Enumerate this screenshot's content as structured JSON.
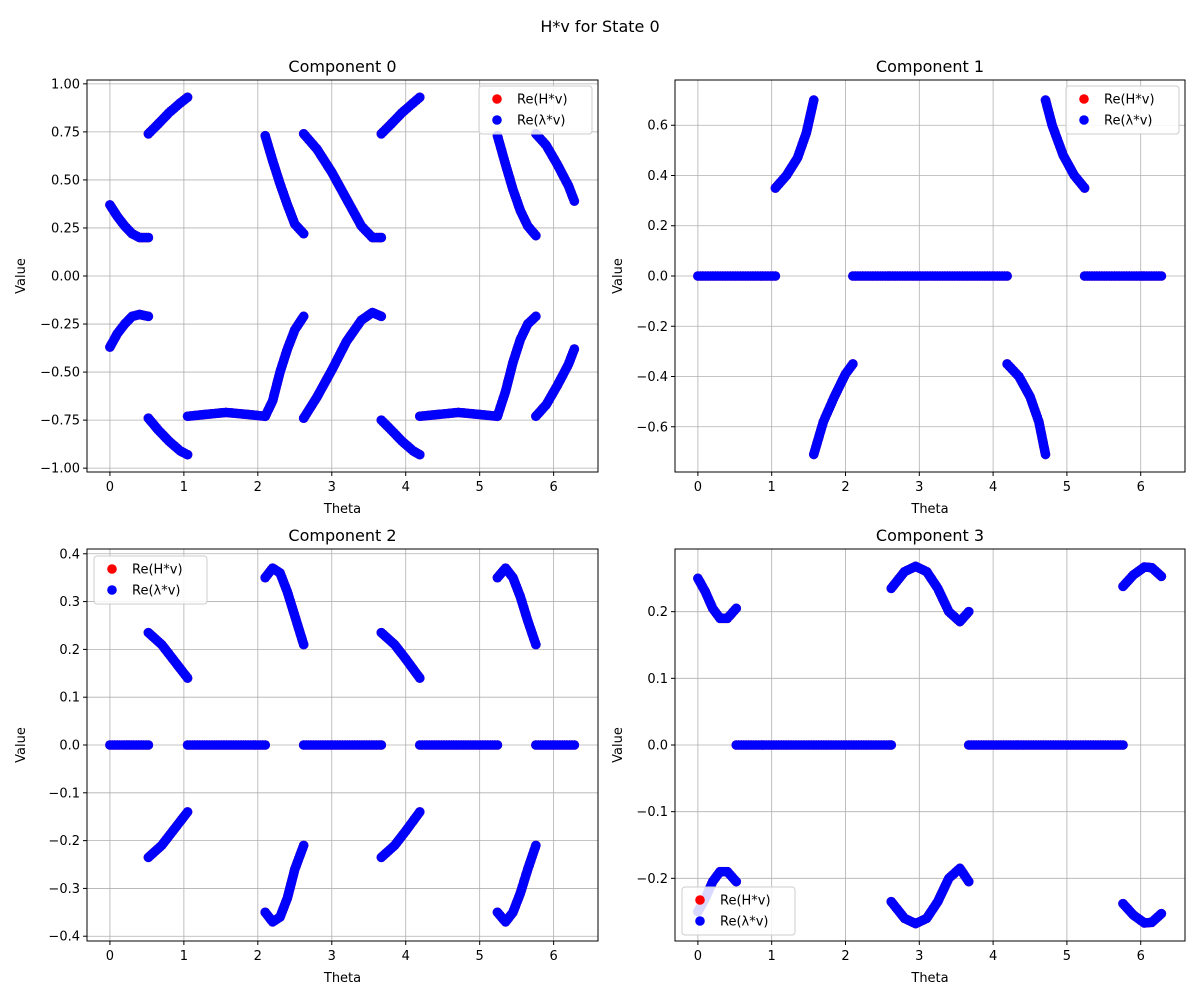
{
  "figure": {
    "suptitle": "H*v for State 0"
  },
  "colors": {
    "h_series": "#ff0000",
    "lambda_series": "#0000ff",
    "grid": "#b0b0b0",
    "legend_border": "#cccccc"
  },
  "chart_data": [
    {
      "type": "scatter",
      "title": "Component 0",
      "xlabel": "Theta",
      "ylabel": "Value",
      "xlim": [
        -0.31,
        6.6
      ],
      "ylim": [
        -1.02,
        1.02
      ],
      "xticks": [
        0,
        1,
        2,
        3,
        4,
        5,
        6
      ],
      "yticks": [
        -1.0,
        -0.75,
        -0.5,
        -0.25,
        0.0,
        0.25,
        0.5,
        0.75,
        1.0
      ],
      "ytick_labels": [
        "−1.00",
        "−0.75",
        "−0.50",
        "−0.25",
        "0.00",
        "0.25",
        "0.50",
        "0.75",
        "1.00"
      ],
      "grid": true,
      "legend_position": "upper right",
      "legend": [
        "Re(H*v)",
        "Re(λ*v)"
      ],
      "segments": [
        {
          "points": [
            [
              0.0,
              0.37
            ],
            [
              0.1,
              0.31
            ],
            [
              0.2,
              0.26
            ],
            [
              0.3,
              0.22
            ],
            [
              0.4,
              0.2
            ],
            [
              0.52,
              0.2
            ]
          ]
        },
        {
          "points": [
            [
              0.0,
              -0.37
            ],
            [
              0.1,
              -0.3
            ],
            [
              0.2,
              -0.25
            ],
            [
              0.3,
              -0.21
            ],
            [
              0.4,
              -0.2
            ],
            [
              0.52,
              -0.21
            ]
          ]
        },
        {
          "points": [
            [
              0.52,
              0.74
            ],
            [
              0.65,
              0.79
            ],
            [
              0.8,
              0.85
            ],
            [
              0.95,
              0.9
            ],
            [
              1.05,
              0.93
            ]
          ]
        },
        {
          "points": [
            [
              0.52,
              -0.74
            ],
            [
              0.65,
              -0.8
            ],
            [
              0.8,
              -0.86
            ],
            [
              0.95,
              -0.91
            ],
            [
              1.05,
              -0.93
            ]
          ]
        },
        {
          "points": [
            [
              1.05,
              -0.73
            ],
            [
              1.3,
              -0.72
            ],
            [
              1.57,
              -0.71
            ],
            [
              1.85,
              -0.72
            ],
            [
              2.1,
              -0.73
            ]
          ]
        },
        {
          "points": [
            [
              2.1,
              -0.73
            ],
            [
              2.2,
              -0.65
            ],
            [
              2.3,
              -0.5
            ],
            [
              2.4,
              -0.38
            ],
            [
              2.5,
              -0.28
            ],
            [
              2.62,
              -0.21
            ]
          ]
        },
        {
          "points": [
            [
              2.1,
              0.73
            ],
            [
              2.2,
              0.6
            ],
            [
              2.3,
              0.48
            ],
            [
              2.4,
              0.37
            ],
            [
              2.5,
              0.27
            ],
            [
              2.62,
              0.22
            ]
          ]
        },
        {
          "points": [
            [
              2.62,
              0.74
            ],
            [
              2.8,
              0.66
            ],
            [
              3.0,
              0.54
            ],
            [
              3.2,
              0.4
            ],
            [
              3.4,
              0.26
            ],
            [
              3.55,
              0.2
            ],
            [
              3.67,
              0.2
            ]
          ]
        },
        {
          "points": [
            [
              2.62,
              -0.74
            ],
            [
              2.8,
              -0.63
            ],
            [
              3.0,
              -0.49
            ],
            [
              3.2,
              -0.34
            ],
            [
              3.4,
              -0.23
            ],
            [
              3.55,
              -0.19
            ],
            [
              3.67,
              -0.21
            ]
          ]
        },
        {
          "points": [
            [
              3.67,
              0.74
            ],
            [
              3.8,
              0.79
            ],
            [
              3.95,
              0.85
            ],
            [
              4.1,
              0.9
            ],
            [
              4.19,
              0.93
            ]
          ]
        },
        {
          "points": [
            [
              3.67,
              -0.75
            ],
            [
              3.8,
              -0.8
            ],
            [
              3.95,
              -0.86
            ],
            [
              4.1,
              -0.91
            ],
            [
              4.19,
              -0.93
            ]
          ]
        },
        {
          "points": [
            [
              4.19,
              -0.73
            ],
            [
              4.45,
              -0.72
            ],
            [
              4.71,
              -0.71
            ],
            [
              4.98,
              -0.72
            ],
            [
              5.24,
              -0.73
            ]
          ]
        },
        {
          "points": [
            [
              5.24,
              -0.73
            ],
            [
              5.35,
              -0.6
            ],
            [
              5.45,
              -0.45
            ],
            [
              5.55,
              -0.33
            ],
            [
              5.65,
              -0.25
            ],
            [
              5.76,
              -0.21
            ]
          ]
        },
        {
          "points": [
            [
              5.24,
              0.73
            ],
            [
              5.35,
              0.58
            ],
            [
              5.45,
              0.45
            ],
            [
              5.55,
              0.34
            ],
            [
              5.65,
              0.26
            ],
            [
              5.76,
              0.21
            ]
          ]
        },
        {
          "points": [
            [
              5.76,
              0.74
            ],
            [
              5.9,
              0.68
            ],
            [
              6.05,
              0.58
            ],
            [
              6.2,
              0.47
            ],
            [
              6.28,
              0.39
            ]
          ]
        },
        {
          "points": [
            [
              5.76,
              -0.73
            ],
            [
              5.9,
              -0.67
            ],
            [
              6.05,
              -0.57
            ],
            [
              6.2,
              -0.46
            ],
            [
              6.28,
              -0.38
            ]
          ]
        }
      ]
    },
    {
      "type": "scatter",
      "title": "Component 1",
      "xlabel": "Theta",
      "ylabel": "Value",
      "xlim": [
        -0.31,
        6.6
      ],
      "ylim": [
        -0.78,
        0.78
      ],
      "xticks": [
        0,
        1,
        2,
        3,
        4,
        5,
        6
      ],
      "yticks": [
        -0.6,
        -0.4,
        -0.2,
        0.0,
        0.2,
        0.4,
        0.6
      ],
      "ytick_labels": [
        "−0.6",
        "−0.4",
        "−0.2",
        "0.0",
        "0.2",
        "0.4",
        "0.6"
      ],
      "grid": true,
      "legend_position": "upper right",
      "legend": [
        "Re(H*v)",
        "Re(λ*v)"
      ],
      "segments": [
        {
          "points": [
            [
              0.0,
              0.0
            ],
            [
              1.05,
              0.0
            ]
          ]
        },
        {
          "points": [
            [
              1.05,
              0.35
            ],
            [
              1.2,
              0.4
            ],
            [
              1.35,
              0.47
            ],
            [
              1.47,
              0.57
            ],
            [
              1.57,
              0.7
            ]
          ]
        },
        {
          "points": [
            [
              1.57,
              -0.71
            ],
            [
              1.7,
              -0.58
            ],
            [
              1.85,
              -0.48
            ],
            [
              2.0,
              -0.39
            ],
            [
              2.1,
              -0.35
            ]
          ]
        },
        {
          "points": [
            [
              2.1,
              0.0
            ],
            [
              4.19,
              0.0
            ]
          ]
        },
        {
          "points": [
            [
              4.19,
              -0.35
            ],
            [
              4.35,
              -0.4
            ],
            [
              4.5,
              -0.48
            ],
            [
              4.62,
              -0.58
            ],
            [
              4.71,
              -0.71
            ]
          ]
        },
        {
          "points": [
            [
              4.71,
              0.7
            ],
            [
              4.8,
              0.6
            ],
            [
              4.95,
              0.48
            ],
            [
              5.1,
              0.4
            ],
            [
              5.24,
              0.35
            ]
          ]
        },
        {
          "points": [
            [
              5.24,
              0.0
            ],
            [
              6.28,
              0.0
            ]
          ]
        }
      ]
    },
    {
      "type": "scatter",
      "title": "Component 2",
      "xlabel": "Theta",
      "ylabel": "Value",
      "xlim": [
        -0.31,
        6.6
      ],
      "ylim": [
        -0.41,
        0.41
      ],
      "xticks": [
        0,
        1,
        2,
        3,
        4,
        5,
        6
      ],
      "yticks": [
        -0.4,
        -0.3,
        -0.2,
        -0.1,
        0.0,
        0.1,
        0.2,
        0.3,
        0.4
      ],
      "ytick_labels": [
        "−0.4",
        "−0.3",
        "−0.2",
        "−0.1",
        "0.0",
        "0.1",
        "0.2",
        "0.3",
        "0.4"
      ],
      "grid": true,
      "legend_position": "upper left",
      "legend": [
        "Re(H*v)",
        "Re(λ*v)"
      ],
      "segments": [
        {
          "points": [
            [
              0.0,
              0.0
            ],
            [
              0.52,
              0.0
            ]
          ]
        },
        {
          "points": [
            [
              0.52,
              0.235
            ],
            [
              0.7,
              0.21
            ],
            [
              0.85,
              0.18
            ],
            [
              1.05,
              0.14
            ]
          ]
        },
        {
          "points": [
            [
              0.52,
              -0.235
            ],
            [
              0.7,
              -0.21
            ],
            [
              0.85,
              -0.18
            ],
            [
              1.05,
              -0.14
            ]
          ]
        },
        {
          "points": [
            [
              1.05,
              0.0
            ],
            [
              2.1,
              0.0
            ]
          ]
        },
        {
          "points": [
            [
              2.1,
              0.35
            ],
            [
              2.2,
              0.37
            ],
            [
              2.3,
              0.36
            ],
            [
              2.4,
              0.32
            ],
            [
              2.5,
              0.27
            ],
            [
              2.62,
              0.21
            ]
          ]
        },
        {
          "points": [
            [
              2.1,
              -0.35
            ],
            [
              2.2,
              -0.37
            ],
            [
              2.3,
              -0.36
            ],
            [
              2.4,
              -0.32
            ],
            [
              2.5,
              -0.26
            ],
            [
              2.62,
              -0.21
            ]
          ]
        },
        {
          "points": [
            [
              2.62,
              0.0
            ],
            [
              3.67,
              0.0
            ]
          ]
        },
        {
          "points": [
            [
              3.67,
              0.235
            ],
            [
              3.85,
              0.21
            ],
            [
              4.0,
              0.18
            ],
            [
              4.19,
              0.14
            ]
          ]
        },
        {
          "points": [
            [
              3.67,
              -0.235
            ],
            [
              3.85,
              -0.21
            ],
            [
              4.0,
              -0.18
            ],
            [
              4.19,
              -0.14
            ]
          ]
        },
        {
          "points": [
            [
              4.19,
              0.0
            ],
            [
              5.24,
              0.0
            ]
          ]
        },
        {
          "points": [
            [
              5.24,
              0.35
            ],
            [
              5.35,
              0.37
            ],
            [
              5.45,
              0.35
            ],
            [
              5.55,
              0.31
            ],
            [
              5.65,
              0.26
            ],
            [
              5.76,
              0.21
            ]
          ]
        },
        {
          "points": [
            [
              5.24,
              -0.35
            ],
            [
              5.35,
              -0.37
            ],
            [
              5.45,
              -0.35
            ],
            [
              5.55,
              -0.31
            ],
            [
              5.65,
              -0.26
            ],
            [
              5.76,
              -0.21
            ]
          ]
        },
        {
          "points": [
            [
              5.76,
              0.0
            ],
            [
              6.28,
              0.0
            ]
          ]
        }
      ]
    },
    {
      "type": "scatter",
      "title": "Component 3",
      "xlabel": "Theta",
      "ylabel": "Value",
      "xlim": [
        -0.31,
        6.6
      ],
      "ylim": [
        -0.294,
        0.294
      ],
      "xticks": [
        0,
        1,
        2,
        3,
        4,
        5,
        6
      ],
      "yticks": [
        -0.2,
        -0.1,
        0.0,
        0.1,
        0.2
      ],
      "ytick_labels": [
        "−0.2",
        "−0.1",
        "0.0",
        "0.1",
        "0.2"
      ],
      "grid": true,
      "legend_position": "lower left",
      "legend": [
        "Re(H*v)",
        "Re(λ*v)"
      ],
      "segments": [
        {
          "points": [
            [
              0.0,
              0.25
            ],
            [
              0.1,
              0.23
            ],
            [
              0.2,
              0.205
            ],
            [
              0.3,
              0.19
            ],
            [
              0.4,
              0.19
            ],
            [
              0.52,
              0.205
            ]
          ]
        },
        {
          "points": [
            [
              0.0,
              -0.25
            ],
            [
              0.1,
              -0.23
            ],
            [
              0.2,
              -0.205
            ],
            [
              0.3,
              -0.19
            ],
            [
              0.4,
              -0.19
            ],
            [
              0.52,
              -0.205
            ]
          ]
        },
        {
          "points": [
            [
              0.52,
              0.0
            ],
            [
              2.62,
              0.0
            ]
          ]
        },
        {
          "points": [
            [
              2.62,
              0.235
            ],
            [
              2.8,
              0.26
            ],
            [
              2.95,
              0.268
            ],
            [
              3.1,
              0.26
            ],
            [
              3.25,
              0.235
            ],
            [
              3.4,
              0.2
            ],
            [
              3.55,
              0.185
            ],
            [
              3.67,
              0.2
            ]
          ]
        },
        {
          "points": [
            [
              2.62,
              -0.235
            ],
            [
              2.8,
              -0.26
            ],
            [
              2.95,
              -0.268
            ],
            [
              3.1,
              -0.26
            ],
            [
              3.25,
              -0.235
            ],
            [
              3.4,
              -0.2
            ],
            [
              3.55,
              -0.185
            ],
            [
              3.67,
              -0.205
            ]
          ]
        },
        {
          "points": [
            [
              3.67,
              0.0
            ],
            [
              5.76,
              0.0
            ]
          ]
        },
        {
          "points": [
            [
              5.76,
              0.238
            ],
            [
              5.9,
              0.255
            ],
            [
              6.05,
              0.267
            ],
            [
              6.15,
              0.266
            ],
            [
              6.28,
              0.253
            ]
          ]
        },
        {
          "points": [
            [
              5.76,
              -0.238
            ],
            [
              5.9,
              -0.255
            ],
            [
              6.05,
              -0.267
            ],
            [
              6.15,
              -0.266
            ],
            [
              6.28,
              -0.253
            ]
          ]
        }
      ]
    }
  ]
}
